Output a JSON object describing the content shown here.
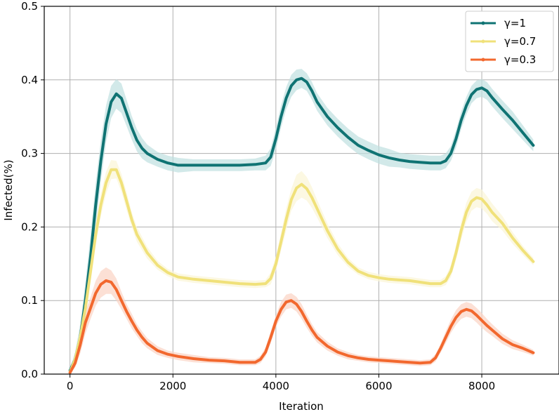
{
  "chart_data": {
    "type": "line",
    "title": "",
    "xlabel": "Iteration",
    "ylabel": "Infected(%)",
    "xlim": [
      -500,
      9500
    ],
    "ylim": [
      0.0,
      0.5
    ],
    "xticks": [
      0,
      2000,
      4000,
      6000,
      8000
    ],
    "xtick_labels": [
      "0",
      "2000",
      "4000",
      "6000",
      "8000"
    ],
    "yticks": [
      0.0,
      0.1,
      0.2,
      0.3,
      0.4,
      0.5
    ],
    "ytick_labels": [
      "0.0",
      "0.1",
      "0.2",
      "0.3",
      "0.4",
      "0.5"
    ],
    "grid": true,
    "legend_position": "upper right",
    "series": [
      {
        "name": "γ=1",
        "color": "#0f7373",
        "band_color": "#bfe0e0",
        "x": [
          0,
          100,
          200,
          300,
          400,
          500,
          600,
          700,
          800,
          900,
          1000,
          1100,
          1200,
          1300,
          1400,
          1500,
          1700,
          1900,
          2100,
          2400,
          2700,
          3000,
          3300,
          3600,
          3800,
          3900,
          4000,
          4100,
          4200,
          4300,
          4400,
          4500,
          4600,
          4700,
          4800,
          5000,
          5200,
          5400,
          5600,
          5800,
          6000,
          6200,
          6400,
          6600,
          6800,
          7000,
          7200,
          7300,
          7400,
          7500,
          7600,
          7700,
          7800,
          7900,
          8000,
          8100,
          8200,
          8400,
          8600,
          8800,
          9000
        ],
        "y": [
          0.005,
          0.02,
          0.05,
          0.1,
          0.16,
          0.23,
          0.29,
          0.34,
          0.37,
          0.381,
          0.375,
          0.355,
          0.335,
          0.318,
          0.307,
          0.3,
          0.292,
          0.287,
          0.284,
          0.284,
          0.284,
          0.284,
          0.284,
          0.285,
          0.287,
          0.295,
          0.32,
          0.35,
          0.375,
          0.392,
          0.4,
          0.402,
          0.397,
          0.385,
          0.37,
          0.35,
          0.335,
          0.322,
          0.311,
          0.304,
          0.298,
          0.294,
          0.291,
          0.289,
          0.288,
          0.287,
          0.287,
          0.29,
          0.3,
          0.32,
          0.345,
          0.365,
          0.38,
          0.387,
          0.389,
          0.385,
          0.376,
          0.36,
          0.345,
          0.328,
          0.311
        ],
        "band": [
          0.002,
          0.01,
          0.018,
          0.025,
          0.03,
          0.03,
          0.028,
          0.025,
          0.022,
          0.02,
          0.02,
          0.018,
          0.016,
          0.015,
          0.014,
          0.012,
          0.01,
          0.01,
          0.01,
          0.008,
          0.008,
          0.008,
          0.008,
          0.008,
          0.01,
          0.012,
          0.015,
          0.015,
          0.015,
          0.015,
          0.014,
          0.013,
          0.012,
          0.012,
          0.012,
          0.012,
          0.012,
          0.012,
          0.012,
          0.012,
          0.012,
          0.012,
          0.01,
          0.01,
          0.01,
          0.01,
          0.01,
          0.01,
          0.01,
          0.012,
          0.012,
          0.012,
          0.012,
          0.012,
          0.012,
          0.012,
          0.012,
          0.012,
          0.012,
          0.01,
          0.008
        ]
      },
      {
        "name": "γ=0.7",
        "color": "#f0e17a",
        "band_color": "#fbf5d5",
        "x": [
          0,
          100,
          200,
          300,
          400,
          500,
          600,
          700,
          800,
          900,
          1000,
          1100,
          1200,
          1300,
          1500,
          1700,
          1900,
          2100,
          2400,
          2700,
          3000,
          3300,
          3600,
          3800,
          3900,
          4000,
          4100,
          4200,
          4300,
          4400,
          4500,
          4600,
          4700,
          4800,
          5000,
          5200,
          5400,
          5600,
          5800,
          6000,
          6200,
          6400,
          6600,
          6800,
          7000,
          7200,
          7300,
          7400,
          7500,
          7600,
          7700,
          7800,
          7900,
          8000,
          8100,
          8200,
          8400,
          8600,
          8800,
          9000
        ],
        "y": [
          0.003,
          0.02,
          0.05,
          0.09,
          0.14,
          0.19,
          0.23,
          0.26,
          0.278,
          0.278,
          0.26,
          0.235,
          0.21,
          0.19,
          0.165,
          0.148,
          0.138,
          0.132,
          0.129,
          0.127,
          0.125,
          0.123,
          0.122,
          0.123,
          0.13,
          0.15,
          0.18,
          0.21,
          0.237,
          0.253,
          0.258,
          0.252,
          0.24,
          0.225,
          0.195,
          0.17,
          0.152,
          0.14,
          0.134,
          0.131,
          0.129,
          0.128,
          0.127,
          0.125,
          0.123,
          0.123,
          0.127,
          0.14,
          0.165,
          0.195,
          0.22,
          0.235,
          0.24,
          0.238,
          0.23,
          0.22,
          0.205,
          0.185,
          0.168,
          0.153
        ],
        "band": [
          0.002,
          0.008,
          0.012,
          0.015,
          0.015,
          0.015,
          0.015,
          0.015,
          0.013,
          0.012,
          0.012,
          0.012,
          0.01,
          0.01,
          0.008,
          0.006,
          0.005,
          0.005,
          0.005,
          0.005,
          0.005,
          0.005,
          0.005,
          0.005,
          0.008,
          0.01,
          0.012,
          0.015,
          0.015,
          0.018,
          0.018,
          0.016,
          0.014,
          0.012,
          0.01,
          0.008,
          0.006,
          0.005,
          0.005,
          0.005,
          0.005,
          0.005,
          0.005,
          0.005,
          0.005,
          0.005,
          0.006,
          0.008,
          0.01,
          0.012,
          0.013,
          0.013,
          0.013,
          0.013,
          0.012,
          0.012,
          0.01,
          0.008,
          0.006,
          0.005
        ]
      },
      {
        "name": "γ=0.3",
        "color": "#f2682e",
        "band_color": "#fbd3c3",
        "x": [
          0,
          100,
          200,
          300,
          400,
          500,
          600,
          700,
          800,
          900,
          1000,
          1100,
          1200,
          1300,
          1400,
          1500,
          1700,
          1900,
          2100,
          2400,
          2700,
          3000,
          3300,
          3600,
          3700,
          3800,
          3900,
          4000,
          4100,
          4200,
          4300,
          4400,
          4500,
          4600,
          4700,
          4800,
          5000,
          5200,
          5400,
          5600,
          5800,
          6000,
          6200,
          6400,
          6600,
          6800,
          7000,
          7100,
          7200,
          7300,
          7400,
          7500,
          7600,
          7700,
          7800,
          7900,
          8000,
          8100,
          8200,
          8400,
          8600,
          8800,
          9000
        ],
        "y": [
          0.002,
          0.015,
          0.04,
          0.07,
          0.09,
          0.11,
          0.122,
          0.127,
          0.125,
          0.115,
          0.1,
          0.085,
          0.072,
          0.06,
          0.05,
          0.042,
          0.032,
          0.027,
          0.024,
          0.021,
          0.019,
          0.018,
          0.016,
          0.016,
          0.02,
          0.03,
          0.05,
          0.072,
          0.088,
          0.098,
          0.1,
          0.095,
          0.085,
          0.072,
          0.06,
          0.05,
          0.038,
          0.03,
          0.025,
          0.022,
          0.02,
          0.019,
          0.018,
          0.017,
          0.016,
          0.015,
          0.016,
          0.022,
          0.035,
          0.05,
          0.065,
          0.077,
          0.085,
          0.088,
          0.086,
          0.08,
          0.073,
          0.066,
          0.06,
          0.048,
          0.04,
          0.035,
          0.029
        ],
        "band": [
          0.001,
          0.006,
          0.012,
          0.015,
          0.015,
          0.017,
          0.018,
          0.018,
          0.016,
          0.015,
          0.012,
          0.01,
          0.01,
          0.008,
          0.008,
          0.007,
          0.006,
          0.005,
          0.005,
          0.005,
          0.004,
          0.004,
          0.004,
          0.004,
          0.005,
          0.006,
          0.008,
          0.008,
          0.01,
          0.01,
          0.01,
          0.01,
          0.01,
          0.009,
          0.008,
          0.007,
          0.006,
          0.005,
          0.005,
          0.004,
          0.004,
          0.004,
          0.004,
          0.004,
          0.004,
          0.004,
          0.004,
          0.005,
          0.006,
          0.008,
          0.009,
          0.01,
          0.01,
          0.01,
          0.01,
          0.01,
          0.01,
          0.009,
          0.008,
          0.007,
          0.006,
          0.005,
          0.004
        ]
      }
    ]
  }
}
